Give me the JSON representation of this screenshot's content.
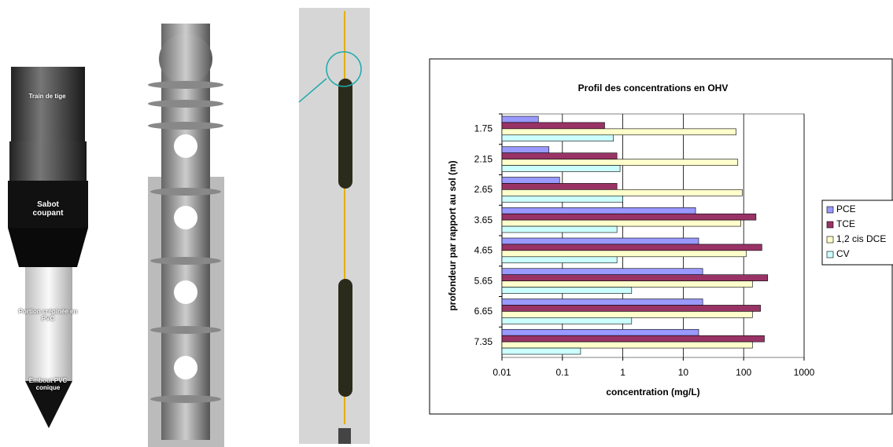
{
  "figure_labels": [
    "Train de tige",
    "Sabot coupant",
    "Portion crépinée en PVC",
    "Embout PVC conique"
  ],
  "chart_data": {
    "type": "barh",
    "title": "Profil des concentrations en OHV",
    "xlabel": "concentration (mg/L)",
    "ylabel": "profondeur par rapport au sol  (m)",
    "categories": [
      "1.75",
      "2.15",
      "2.65",
      "3.65",
      "4.65",
      "5.65",
      "6.65",
      "7.35"
    ],
    "series": [
      {
        "name": "PCE",
        "color": "#9999ff",
        "values": [
          0.04,
          0.06,
          0.09,
          16,
          18,
          21,
          21,
          18
        ]
      },
      {
        "name": "TCE",
        "color": "#993366",
        "values": [
          0.5,
          0.8,
          0.8,
          160,
          200,
          250,
          190,
          220
        ]
      },
      {
        "name": "1,2 cis DCE",
        "color": "#ffffcc",
        "values": [
          75,
          80,
          95,
          90,
          110,
          140,
          140,
          140
        ]
      },
      {
        "name": "CV",
        "color": "#ccffff",
        "values": [
          0.7,
          0.9,
          1,
          0.8,
          0.8,
          1.4,
          1.4,
          0.2
        ]
      }
    ],
    "xscale": "log",
    "xlim": [
      0.01,
      1000
    ],
    "xticks": [
      0.01,
      0.1,
      1,
      10,
      100,
      1000
    ],
    "grid": true,
    "legend": "right"
  }
}
